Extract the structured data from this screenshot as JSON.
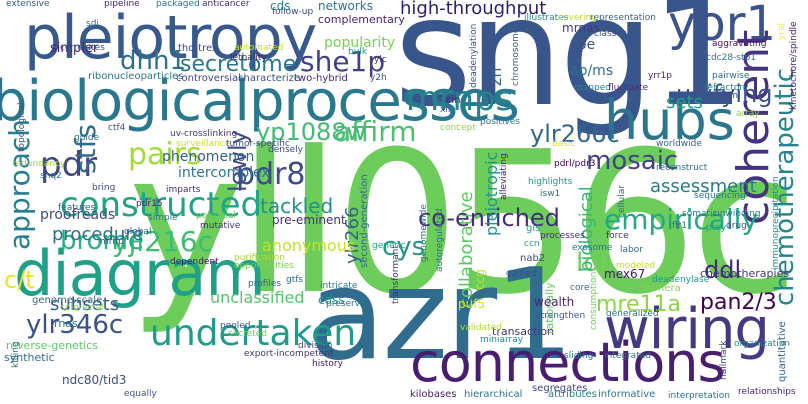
{
  "words": [
    {
      "text": "yll056c",
      "color": "#6ccd5a"
    },
    {
      "text": "sng1",
      "color": "#39568c"
    },
    {
      "text": "azr1",
      "color": "#2f6c8e"
    },
    {
      "text": "biologicalprocesses",
      "color": "#2a788e"
    },
    {
      "text": "pleiotropy",
      "color": "#38598c"
    },
    {
      "text": "connections",
      "color": "#481f70"
    },
    {
      "text": "diagram",
      "color": "#1fa187"
    },
    {
      "text": "wiring",
      "color": "#443983"
    },
    {
      "text": "hubs",
      "color": "#2b758e"
    },
    {
      "text": "yor1",
      "color": "#3b528b"
    },
    {
      "text": "coherent",
      "color": "#46337f"
    },
    {
      "text": "chemotherapeutic",
      "color": "#25858e"
    },
    {
      "text": "approach",
      "color": "#277f8e"
    },
    {
      "text": "mrnps",
      "color": "#26828e"
    },
    {
      "text": "undertaken",
      "color": "#1e9b8a"
    },
    {
      "text": "constructed",
      "color": "#20a486"
    },
    {
      "text": "mosaic",
      "color": "#414487"
    },
    {
      "text": "dhh1",
      "color": "#2c728e"
    },
    {
      "text": "ylr266c",
      "color": "#31688e"
    },
    {
      "text": "secretome",
      "color": "#2a778e"
    },
    {
      "text": "she1p",
      "color": "#424086"
    },
    {
      "text": "pairs",
      "color": "#a2da37"
    },
    {
      "text": "pdr",
      "color": "#404688"
    },
    {
      "text": "empirically",
      "color": "#22a884"
    },
    {
      "text": "yjl216c",
      "color": "#3dbc74"
    },
    {
      "text": "affirm",
      "color": "#4ac16d"
    },
    {
      "text": "co-enriched",
      "color": "#472c7a"
    },
    {
      "text": "ylr346c",
      "color": "#3b518b"
    },
    {
      "text": "pdr8",
      "color": "#3e4a89"
    },
    {
      "text": "brome",
      "color": "#29af7f"
    },
    {
      "text": "lof",
      "color": "#73d056"
    },
    {
      "text": "yp1088w",
      "color": "#3fbc73"
    },
    {
      "text": "mre11a",
      "color": "#8bd646"
    },
    {
      "text": "pan2/3",
      "color": "#440154"
    },
    {
      "text": "lowly",
      "color": "#3e4c8a"
    },
    {
      "text": "stfs",
      "color": "#306a8e"
    },
    {
      "text": "unifying",
      "color": "#3b528b"
    },
    {
      "text": "ddl",
      "color": "#482878"
    },
    {
      "text": "cys",
      "color": "#1f988b"
    },
    {
      "text": "high-throughput",
      "color": "#2d1e73"
    },
    {
      "text": "tackled",
      "color": "#21918c"
    },
    {
      "text": "procedure",
      "color": "#2e6f8e"
    },
    {
      "text": "c/t",
      "color": "#ece51b"
    },
    {
      "text": "subsets",
      "color": "#365d8d"
    },
    {
      "text": "collaborative",
      "color": "#5ec962"
    },
    {
      "text": "pleiotropic",
      "color": "#1f958b"
    },
    {
      "text": "biological",
      "color": "#35b779"
    },
    {
      "text": "ylr266",
      "color": "#33638d"
    },
    {
      "text": "assessment",
      "color": "#287c8e"
    },
    {
      "text": "anonymous",
      "color": "#c8e020"
    },
    {
      "text": "proofreads",
      "color": "#3e4989"
    },
    {
      "text": "unclassified",
      "color": "#52c569"
    },
    {
      "text": "phenomenon",
      "color": "#355f8d"
    },
    {
      "text": "intercomplex",
      "color": "#2c738e"
    },
    {
      "text": "popularity",
      "color": "#7ad151"
    },
    {
      "text": "sets",
      "color": "#1f9e89"
    },
    {
      "text": "networks",
      "color": "#2c728e"
    },
    {
      "text": "simpler",
      "color": "#482173"
    },
    {
      "text": "zn",
      "color": "#31678e"
    },
    {
      "text": "ap/ms",
      "color": "#2e6e8e"
    },
    {
      "text": "oe",
      "color": "#3c4f8a"
    },
    {
      "text": "mrnas",
      "color": "#453882"
    },
    {
      "text": "cds",
      "color": "#24868e"
    },
    {
      "text": "cdss",
      "color": "#1e9c89"
    },
    {
      "text": "puf5",
      "color": "#dde318"
    },
    {
      "text": "mex67",
      "color": "#481467"
    },
    {
      "text": "ccg",
      "color": "#c0df25"
    },
    {
      "text": "pre-eminent",
      "color": "#472d7b"
    },
    {
      "text": "second-generation",
      "color": "#2f6b8e"
    },
    {
      "text": "transaction",
      "color": "#46327e"
    },
    {
      "text": "chemotherapies",
      "color": "#453781"
    },
    {
      "text": "rationally",
      "color": "#65cb5e"
    },
    {
      "text": "chimera",
      "color": "#7fd34e"
    },
    {
      "text": "wealth",
      "color": "#482475"
    },
    {
      "text": "ndc80/tid3",
      "color": "#3e4a89"
    },
    {
      "text": "history",
      "color": "#481769"
    },
    {
      "text": "kilobases",
      "color": "#482071"
    },
    {
      "text": "hierarchical",
      "color": "#2e6e8e"
    },
    {
      "text": "attributes",
      "color": "#26818e"
    },
    {
      "text": "informative",
      "color": "#2a768e"
    },
    {
      "text": "interpretation",
      "color": "#2b748e"
    },
    {
      "text": "relationships",
      "color": "#482576"
    },
    {
      "text": "quantitative",
      "color": "#32648e"
    },
    {
      "text": "kinetochore/spindle",
      "color": "#481a6c"
    },
    {
      "text": "immunoprecipitation",
      "color": "#21918c"
    },
    {
      "text": "segregates",
      "color": "#414487"
    },
    {
      "text": "sliding",
      "color": "#2c718e"
    },
    {
      "text": "integrated",
      "color": "#2c738e"
    },
    {
      "text": "organization",
      "color": "#21908d"
    },
    {
      "text": "reverse-genetics",
      "color": "#5ac864"
    },
    {
      "text": "synthetic",
      "color": "#2f6b8e"
    },
    {
      "text": "genome-scale",
      "color": "#31678e"
    },
    {
      "text": "colorectal",
      "color": "#8fd744"
    },
    {
      "text": "rnas",
      "color": "#2a778e"
    },
    {
      "text": "complementary",
      "color": "#481d6f"
    },
    {
      "text": "ribonucleoparticles",
      "color": "#2b748e"
    },
    {
      "text": "two-hybrid",
      "color": "#482979"
    },
    {
      "text": "controversial",
      "color": "#404588"
    },
    {
      "text": "characterize",
      "color": "#3b528b"
    },
    {
      "text": "tho-trex",
      "color": "#3f4788"
    },
    {
      "text": "correlates",
      "color": "#365c8d"
    },
    {
      "text": "pipeline",
      "color": "#482475"
    },
    {
      "text": "packaged",
      "color": "#2c738e"
    },
    {
      "text": "extensive",
      "color": "#375b8d"
    },
    {
      "text": "anticancer",
      "color": "#472a7a"
    },
    {
      "text": "follow-up",
      "color": "#3e4c8a"
    },
    {
      "text": "illustrates",
      "color": "#24878e"
    },
    {
      "text": "representation",
      "color": "#34618d"
    },
    {
      "text": "covering",
      "color": "#bade28"
    },
    {
      "text": "classes",
      "color": "#3b528b"
    },
    {
      "text": "aggravating",
      "color": "#471063"
    },
    {
      "text": "cdc28-stb1",
      "color": "#2c738e"
    },
    {
      "text": "chromosomes",
      "color": "#33638d"
    },
    {
      "text": "deadenylation",
      "color": "#3a548c"
    },
    {
      "text": "cin",
      "color": "#482475"
    },
    {
      "text": "mapped",
      "color": "#25838e"
    },
    {
      "text": "fluctuate",
      "color": "#472d7b"
    },
    {
      "text": "yrr1p",
      "color": "#482374"
    },
    {
      "text": "pairwise",
      "color": "#2e6e8e"
    },
    {
      "text": "refractory",
      "color": "#26818e"
    },
    {
      "text": "daml",
      "color": "#3d4e8a"
    },
    {
      "text": "array",
      "color": "#8bd646"
    },
    {
      "text": "yral",
      "color": "#fde725"
    },
    {
      "text": "ctf4",
      "color": "#3b528b"
    },
    {
      "text": "guide",
      "color": "#2c738e"
    },
    {
      "text": "topological",
      "color": "#39568c"
    },
    {
      "text": "uv-crosslinking",
      "color": "#453882"
    },
    {
      "text": "surveillance",
      "color": "#d0e11c"
    },
    {
      "text": "tumor-specific",
      "color": "#3e4c8a"
    },
    {
      "text": "densely",
      "color": "#3d4e8a"
    },
    {
      "text": "redundancy",
      "color": "#aadc32"
    },
    {
      "text": "snq2",
      "color": "#2d708e"
    },
    {
      "text": "bring",
      "color": "#3f4788"
    },
    {
      "text": "imparts",
      "color": "#462f7e"
    },
    {
      "text": "pdr15",
      "color": "#481b6d"
    },
    {
      "text": "simple",
      "color": "#29798e"
    },
    {
      "text": "global",
      "color": "#33638d"
    },
    {
      "text": "mrnp",
      "color": "#3b528b"
    },
    {
      "text": "features",
      "color": "#33638d"
    },
    {
      "text": "mutative",
      "color": "#472c7a"
    },
    {
      "text": "potential",
      "color": "#5ec962"
    },
    {
      "text": "opportunities",
      "color": "#7ad151"
    },
    {
      "text": "gtfs",
      "color": "#306a8e"
    },
    {
      "text": "profiles",
      "color": "#31678e"
    },
    {
      "text": "pooled",
      "color": "#3b528b"
    },
    {
      "text": "secreted",
      "color": "#6ccd5a"
    },
    {
      "text": "export-incompetent",
      "color": "#46327e"
    },
    {
      "text": "division",
      "color": "#3f4889"
    },
    {
      "text": "preserve",
      "color": "#2c728e"
    },
    {
      "text": "intricate",
      "color": "#2a768e"
    },
    {
      "text": "transformant",
      "color": "#472f7d"
    },
    {
      "text": "genomewide",
      "color": "#2b758e"
    },
    {
      "text": "autoregulated",
      "color": "#2f6c8e"
    },
    {
      "text": "validated",
      "color": "#b5de2b"
    },
    {
      "text": "miniarray",
      "color": "#23898e"
    },
    {
      "text": "strengthen",
      "color": "#39568c"
    },
    {
      "text": "nab2",
      "color": "#3e4989"
    },
    {
      "text": "core",
      "color": "#31688e"
    },
    {
      "text": "gained",
      "color": "#3b518b"
    },
    {
      "text": "consumption",
      "color": "#6ece58"
    },
    {
      "text": "modeled",
      "color": "#c2df23"
    },
    {
      "text": "generalized",
      "color": "#2e6e8e"
    },
    {
      "text": "deadenylase",
      "color": "#1f9a8a"
    },
    {
      "text": "labor",
      "color": "#32658e"
    },
    {
      "text": "force",
      "color": "#472c7a"
    },
    {
      "text": "exosome",
      "color": "#29798e"
    },
    {
      "text": "gis",
      "color": "#20a386"
    },
    {
      "text": "processes",
      "color": "#482878"
    },
    {
      "text": "flr1",
      "color": "#33638d"
    },
    {
      "text": "somatic",
      "color": "#2b758e"
    },
    {
      "text": "cellular",
      "color": "#2f6b8e"
    },
    {
      "text": "prey",
      "color": "#1f9f88"
    },
    {
      "text": "unwinding",
      "color": "#2a788e"
    },
    {
      "text": "drug",
      "color": "#3b528b"
    },
    {
      "text": "sequencing",
      "color": "#2c728e"
    },
    {
      "text": "highlights",
      "color": "#21918c"
    },
    {
      "text": "isw1",
      "color": "#2e6f8e"
    },
    {
      "text": "alleviating",
      "color": "#482173"
    },
    {
      "text": "reconstruct",
      "color": "#2d718e"
    },
    {
      "text": "pdrl/pdr3",
      "color": "#440154"
    },
    {
      "text": "positives",
      "color": "#2c728e"
    },
    {
      "text": "worldwide",
      "color": "#32658e"
    },
    {
      "text": "concept",
      "color": "#90d743"
    },
    {
      "text": "basic",
      "color": "#d8e219"
    },
    {
      "text": "sdi",
      "color": "#2e6e8e"
    },
    {
      "text": "automated",
      "color": "#cae11f"
    },
    {
      "text": "lethality",
      "color": "#482475"
    },
    {
      "text": "bulk",
      "color": "#21908d"
    },
    {
      "text": "y2h",
      "color": "#3b518b"
    },
    {
      "text": "purification",
      "color": "#addc30"
    },
    {
      "text": "ylc",
      "color": "#46337f"
    },
    {
      "text": "xii",
      "color": "#3e4a89"
    },
    {
      "text": "killing",
      "color": "#2a768e"
    },
    {
      "text": "equally",
      "color": "#3b528b"
    },
    {
      "text": "hallmark",
      "color": "#3f4788"
    },
    {
      "text": "ccn",
      "color": "#20a386"
    },
    {
      "text": "dependent",
      "color": "#471365"
    },
    {
      "text": "genetic",
      "color": "#1fa088"
    }
  ]
}
